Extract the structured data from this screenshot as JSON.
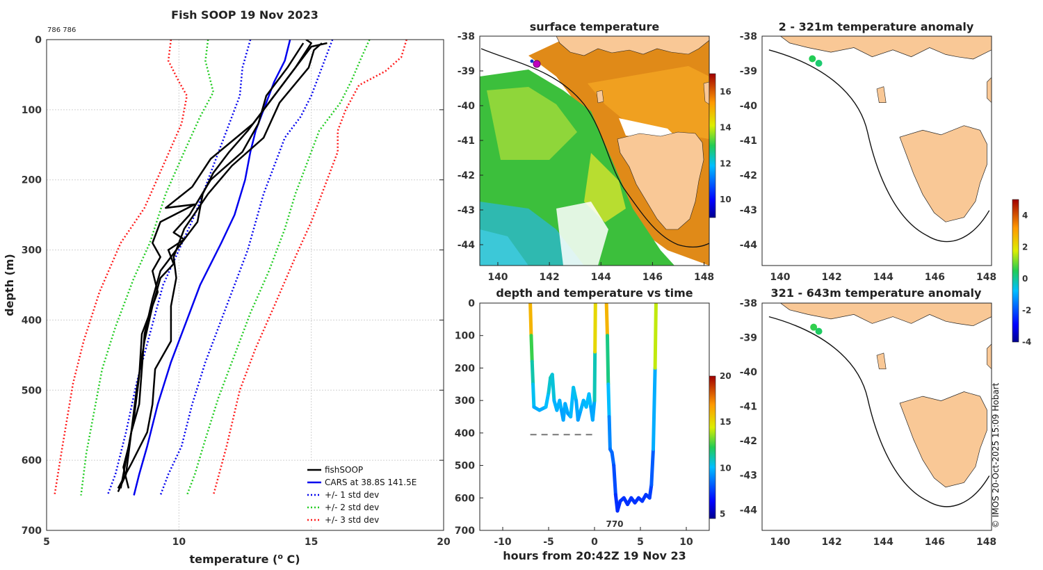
{
  "figure": {
    "profile_title": "Fish SOOP 19 Nov 2023",
    "profile_id_label": "786 786",
    "copyright": "© IMOS 20-Oct-2025 15:09 Hobart"
  },
  "chart_data": [
    {
      "id": "profile",
      "type": "line",
      "title": "Fish SOOP 19 Nov 2023",
      "xlabel": "temperature (ᴼ C)",
      "xlabel_main": "temperature (",
      "xlabel_sup": "o",
      "xlabel_end": " C)",
      "ylabel": "depth (m)",
      "xlim": [
        5,
        20
      ],
      "ylim": [
        700,
        0
      ],
      "xticks": [
        5,
        10,
        15,
        20
      ],
      "yticks": [
        0,
        100,
        200,
        300,
        400,
        500,
        600,
        700
      ],
      "legend": [
        {
          "label": "fishSOOP",
          "color": "#000000",
          "style": "solid"
        },
        {
          "label": "CARS at 38.8S 141.5E",
          "color": "#0000ee",
          "style": "solid"
        },
        {
          "label": "+/- 1 std dev",
          "color": "#0000ee",
          "style": "dotted"
        },
        {
          "label": "+/- 2 std dev",
          "color": "#22cc22",
          "style": "dotted"
        },
        {
          "label": "+/- 3 std dev",
          "color": "#ff1a1a",
          "style": "dotted"
        }
      ],
      "series": [
        {
          "name": "CARS at 38.8S 141.5E",
          "color": "#0000ee",
          "dash": "",
          "points": [
            [
              14.2,
              0
            ],
            [
              14.0,
              30
            ],
            [
              13.6,
              60
            ],
            [
              13.2,
              100
            ],
            [
              12.9,
              130
            ],
            [
              12.7,
              160
            ],
            [
              12.5,
              200
            ],
            [
              12.1,
              250
            ],
            [
              11.6,
              290
            ],
            [
              10.8,
              350
            ],
            [
              10.3,
              400
            ],
            [
              9.7,
              460
            ],
            [
              9.2,
              520
            ],
            [
              8.8,
              580
            ],
            [
              8.5,
              620
            ],
            [
              8.3,
              650
            ]
          ]
        },
        {
          "name": "+1 std dev",
          "color": "#0000ee",
          "dash": "2 3",
          "points": [
            [
              15.8,
              0
            ],
            [
              15.4,
              40
            ],
            [
              15.0,
              80
            ],
            [
              14.6,
              110
            ],
            [
              14.0,
              140
            ],
            [
              13.6,
              180
            ],
            [
              13.2,
              220
            ],
            [
              12.9,
              260
            ],
            [
              12.6,
              300
            ],
            [
              12.1,
              350
            ],
            [
              11.6,
              400
            ],
            [
              11.0,
              460
            ],
            [
              10.5,
              520
            ],
            [
              10.1,
              580
            ],
            [
              9.6,
              620
            ],
            [
              9.3,
              650
            ]
          ]
        },
        {
          "name": "-1 std dev",
          "color": "#0000ee",
          "dash": "2 3",
          "points": [
            [
              12.7,
              0
            ],
            [
              12.4,
              40
            ],
            [
              12.3,
              80
            ],
            [
              11.9,
              120
            ],
            [
              11.5,
              160
            ],
            [
              11.1,
              200
            ],
            [
              10.6,
              250
            ],
            [
              10.0,
              300
            ],
            [
              9.4,
              350
            ],
            [
              8.9,
              420
            ],
            [
              8.4,
              490
            ],
            [
              8.0,
              560
            ],
            [
              7.6,
              620
            ],
            [
              7.3,
              650
            ]
          ]
        },
        {
          "name": "+2 std dev",
          "color": "#22cc22",
          "dash": "2 3",
          "points": [
            [
              17.2,
              0
            ],
            [
              16.9,
              25
            ],
            [
              16.5,
              60
            ],
            [
              16.1,
              90
            ],
            [
              15.3,
              130
            ],
            [
              14.9,
              170
            ],
            [
              14.4,
              220
            ],
            [
              14.0,
              270
            ],
            [
              13.4,
              330
            ],
            [
              12.7,
              390
            ],
            [
              12.1,
              450
            ],
            [
              11.5,
              510
            ],
            [
              11.0,
              570
            ],
            [
              10.6,
              620
            ],
            [
              10.3,
              650
            ]
          ]
        },
        {
          "name": "-2 std dev",
          "color": "#22cc22",
          "dash": "2 3",
          "points": [
            [
              11.1,
              0
            ],
            [
              11.0,
              30
            ],
            [
              11.3,
              75
            ],
            [
              10.8,
              110
            ],
            [
              10.2,
              160
            ],
            [
              9.5,
              220
            ],
            [
              8.9,
              290
            ],
            [
              8.3,
              340
            ],
            [
              7.6,
              410
            ],
            [
              7.1,
              470
            ],
            [
              6.8,
              530
            ],
            [
              6.5,
              590
            ],
            [
              6.3,
              650
            ]
          ]
        },
        {
          "name": "+3 std dev",
          "color": "#ff1a1a",
          "dash": "2 3",
          "points": [
            [
              18.6,
              0
            ],
            [
              18.4,
              25
            ],
            [
              17.8,
              45
            ],
            [
              16.8,
              65
            ],
            [
              16.3,
              100
            ],
            [
              16.0,
              130
            ],
            [
              16.0,
              160
            ],
            [
              15.6,
              200
            ],
            [
              15.0,
              260
            ],
            [
              14.4,
              310
            ],
            [
              13.6,
              380
            ],
            [
              12.9,
              440
            ],
            [
              12.3,
              500
            ],
            [
              11.8,
              580
            ],
            [
              11.3,
              650
            ]
          ]
        },
        {
          "name": "-3 std dev",
          "color": "#ff1a1a",
          "dash": "2 3",
          "points": [
            [
              9.7,
              0
            ],
            [
              9.6,
              30
            ],
            [
              10.0,
              60
            ],
            [
              10.3,
              80
            ],
            [
              10.1,
              120
            ],
            [
              9.4,
              180
            ],
            [
              8.7,
              240
            ],
            [
              7.8,
              290
            ],
            [
              7.0,
              360
            ],
            [
              6.4,
              430
            ],
            [
              6.0,
              490
            ],
            [
              5.6,
              580
            ],
            [
              5.3,
              650
            ]
          ]
        },
        {
          "name": "fishSOOP cast 1",
          "color": "#000000",
          "dash": "",
          "points": [
            [
              14.8,
              0
            ],
            [
              15.0,
              5
            ],
            [
              14.4,
              40
            ],
            [
              13.4,
              90
            ],
            [
              12.6,
              130
            ],
            [
              11.9,
              160
            ],
            [
              11.3,
              190
            ],
            [
              10.9,
              220
            ],
            [
              10.7,
              260
            ],
            [
              10.1,
              290
            ],
            [
              9.3,
              330
            ],
            [
              9.0,
              370
            ],
            [
              8.7,
              420
            ],
            [
              8.6,
              470
            ],
            [
              8.5,
              520
            ],
            [
              8.2,
              560
            ],
            [
              8.0,
              600
            ],
            [
              7.8,
              640
            ]
          ]
        },
        {
          "name": "fishSOOP cast 2",
          "color": "#000000",
          "dash": "",
          "points": [
            [
              15.4,
              5
            ],
            [
              15.1,
              15
            ],
            [
              14.9,
              40
            ],
            [
              13.8,
              90
            ],
            [
              13.2,
              140
            ],
            [
              12.0,
              180
            ],
            [
              11.1,
              220
            ],
            [
              10.2,
              270
            ],
            [
              9.8,
              310
            ],
            [
              9.9,
              340
            ],
            [
              9.7,
              380
            ],
            [
              9.7,
              430
            ],
            [
              9.1,
              470
            ],
            [
              9.0,
              520
            ],
            [
              8.8,
              560
            ],
            [
              8.2,
              605
            ],
            [
              7.7,
              640
            ]
          ]
        },
        {
          "name": "fishSOOP cast 3",
          "color": "#000000",
          "dash": "",
          "points": [
            [
              15.6,
              5
            ],
            [
              15.0,
              10
            ],
            [
              14.2,
              50
            ],
            [
              13.4,
              90
            ],
            [
              12.8,
              120
            ],
            [
              11.2,
              170
            ],
            [
              10.5,
              210
            ],
            [
              9.5,
              240
            ],
            [
              10.6,
              235
            ],
            [
              9.3,
              260
            ],
            [
              9.0,
              290
            ],
            [
              9.3,
              310
            ],
            [
              9.0,
              330
            ],
            [
              9.2,
              360
            ],
            [
              8.6,
              420
            ],
            [
              8.5,
              480
            ],
            [
              8.3,
              540
            ],
            [
              8.1,
              580
            ],
            [
              7.9,
              610
            ],
            [
              8.1,
              640
            ]
          ]
        },
        {
          "name": "fishSOOP cast 4",
          "color": "#000000",
          "dash": "",
          "points": [
            [
              14.7,
              5
            ],
            [
              14.1,
              40
            ],
            [
              13.3,
              80
            ],
            [
              13.0,
              120
            ],
            [
              12.4,
              160
            ],
            [
              11.2,
              200
            ],
            [
              10.4,
              250
            ],
            [
              9.8,
              275
            ],
            [
              10.2,
              285
            ],
            [
              9.6,
              300
            ],
            [
              9.8,
              320
            ],
            [
              9.3,
              340
            ],
            [
              9.0,
              380
            ],
            [
              8.7,
              430
            ],
            [
              8.4,
              500
            ],
            [
              8.2,
              560
            ],
            [
              8.0,
              620
            ],
            [
              7.7,
              645
            ]
          ]
        }
      ]
    },
    {
      "id": "sst_map",
      "type": "heatmap",
      "title": "surface temperature",
      "xlim": [
        139.3,
        148.2
      ],
      "ylim": [
        -44.6,
        -38
      ],
      "xticks": [
        140,
        142,
        144,
        146,
        148
      ],
      "yticks": [
        -38,
        -39,
        -40,
        -41,
        -42,
        -43,
        -44
      ],
      "colorbar": {
        "ticks": [
          10,
          12,
          14,
          16
        ],
        "range": [
          9,
          17
        ]
      }
    },
    {
      "id": "depth_time",
      "type": "scatter",
      "title": "depth and temperature vs time",
      "xlabel": "hours from 20:42Z 19 Nov 23",
      "xlim": [
        -12.5,
        12.5
      ],
      "ylim": [
        700,
        0
      ],
      "xticks": [
        -10,
        -5,
        0,
        5,
        10
      ],
      "yticks": [
        0,
        100,
        200,
        300,
        400,
        500,
        600,
        700
      ],
      "annotation": "770",
      "dashed_line": {
        "x": [
          -7,
          0
        ],
        "depth": 405
      },
      "colorbar": {
        "ticks": [
          5,
          10,
          15,
          20
        ],
        "range": [
          4.5,
          20
        ]
      },
      "track": [
        [
          -7,
          0
        ],
        [
          -6.9,
          100
        ],
        [
          -6.8,
          180
        ],
        [
          -6.7,
          250
        ],
        [
          -6.6,
          320
        ],
        [
          -6.0,
          330
        ],
        [
          -5.3,
          320
        ],
        [
          -5.0,
          275
        ],
        [
          -4.8,
          230
        ],
        [
          -4.6,
          220
        ],
        [
          -4.4,
          300
        ],
        [
          -4.1,
          330
        ],
        [
          -3.8,
          300
        ],
        [
          -3.6,
          330
        ],
        [
          -3.4,
          360
        ],
        [
          -3.2,
          310
        ],
        [
          -2.9,
          340
        ],
        [
          -2.6,
          350
        ],
        [
          -2.3,
          260
        ],
        [
          -2.0,
          300
        ],
        [
          -1.8,
          360
        ],
        [
          -1.5,
          330
        ],
        [
          -1.2,
          300
        ],
        [
          -0.9,
          320
        ],
        [
          -0.6,
          280
        ],
        [
          -0.4,
          320
        ],
        [
          -0.2,
          360
        ],
        [
          0,
          300
        ],
        [
          0.05,
          150
        ],
        [
          0.1,
          0
        ],
        [
          1.3,
          0
        ],
        [
          1.4,
          100
        ],
        [
          1.5,
          250
        ],
        [
          1.6,
          350
        ],
        [
          1.7,
          450
        ],
        [
          1.9,
          460
        ],
        [
          2.1,
          500
        ],
        [
          2.3,
          590
        ],
        [
          2.5,
          640
        ],
        [
          2.8,
          610
        ],
        [
          3.2,
          600
        ],
        [
          3.6,
          620
        ],
        [
          4.0,
          600
        ],
        [
          4.4,
          615
        ],
        [
          4.8,
          600
        ],
        [
          5.2,
          610
        ],
        [
          5.6,
          590
        ],
        [
          6.0,
          600
        ],
        [
          6.2,
          560
        ],
        [
          6.4,
          450
        ],
        [
          6.6,
          200
        ],
        [
          6.7,
          0
        ]
      ]
    },
    {
      "id": "anom_shallow",
      "type": "scatter",
      "title": "2 - 321m temperature anomaly",
      "xlim": [
        139.3,
        148.2
      ],
      "ylim": [
        -44.6,
        -38
      ],
      "xticks": [
        140,
        142,
        144,
        146,
        148
      ],
      "yticks": [
        -38,
        -39,
        -40,
        -41,
        -42,
        -43,
        -44
      ],
      "points": [
        [
          141.25,
          -38.65,
          0.5
        ],
        [
          141.5,
          -38.78,
          0.3
        ]
      ],
      "colorbar": {
        "ticks": [
          4,
          2,
          0,
          -2,
          -4
        ],
        "range": [
          -4,
          5
        ]
      }
    },
    {
      "id": "anom_deep",
      "type": "scatter",
      "title": "321 - 643m temperature anomaly",
      "xlim": [
        139.3,
        148.2
      ],
      "ylim": [
        -44.6,
        -38
      ],
      "xticks": [
        140,
        142,
        144,
        146,
        148
      ],
      "yticks": [
        -38,
        -39,
        -40,
        -41,
        -42,
        -43,
        -44
      ],
      "points": [
        [
          141.3,
          -38.7,
          0.6
        ],
        [
          141.5,
          -38.82,
          0.4
        ]
      ]
    }
  ]
}
